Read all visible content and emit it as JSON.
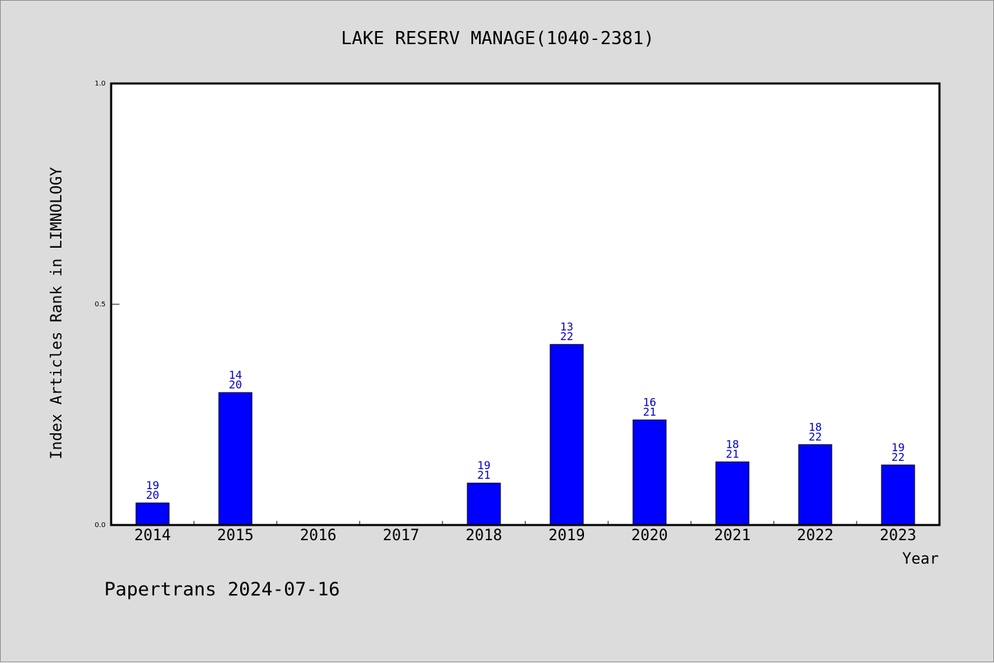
{
  "chart_data": {
    "type": "bar",
    "title": "LAKE RESERV MANAGE(1040-2381)",
    "xlabel": "Year",
    "ylabel": "Index Articles Rank in LIMNOLOGY",
    "ylim": [
      0,
      1
    ],
    "yticks": [
      "0.0",
      "0.5",
      "1.0"
    ],
    "categories": [
      "2014",
      "2015",
      "2016",
      "2017",
      "2018",
      "2019",
      "2020",
      "2021",
      "2022",
      "2023"
    ],
    "values": [
      0.05,
      0.3,
      0,
      0,
      0.095,
      0.409,
      0.238,
      0.143,
      0.182,
      0.136
    ],
    "rank_labels": [
      [
        "19",
        "20"
      ],
      [
        "14",
        "20"
      ],
      null,
      null,
      [
        "19",
        "21"
      ],
      [
        "13",
        "22"
      ],
      [
        "16",
        "21"
      ],
      [
        "18",
        "21"
      ],
      [
        "18",
        "22"
      ],
      [
        "19",
        "22"
      ]
    ],
    "bar_color": "#0000ff",
    "label_color": "#0000cc",
    "background": "#dcdcdc",
    "plot_background": "#ffffff",
    "grid": false,
    "legend": "none"
  },
  "footer": {
    "credit": "Papertrans 2024-07-16"
  }
}
